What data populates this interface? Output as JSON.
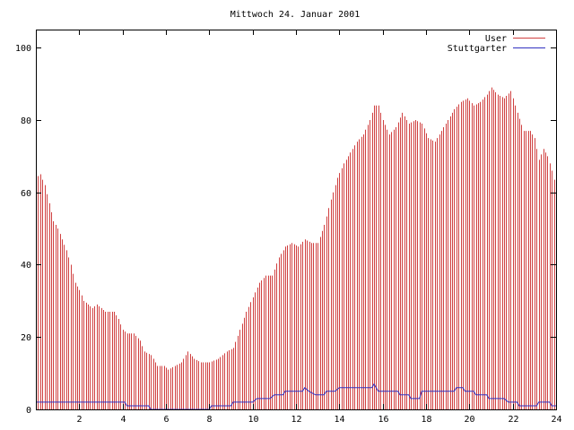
{
  "chart_data": {
    "type": "bar",
    "title": "Mittwoch 24. Januar 2001",
    "xlabel": "",
    "ylabel": "",
    "xlim": [
      0,
      24
    ],
    "ylim": [
      0,
      105
    ],
    "x_ticks": [
      2,
      4,
      6,
      8,
      10,
      12,
      14,
      16,
      18,
      20,
      22,
      24
    ],
    "y_ticks": [
      0,
      20,
      40,
      60,
      80,
      100
    ],
    "grid": false,
    "legend_position": "top-right",
    "bin_hours": 0.1,
    "series": [
      {
        "name": "User",
        "style": "impulses",
        "color": "#d04040",
        "anchors": [
          [
            0.0,
            64
          ],
          [
            0.2,
            65
          ],
          [
            0.4,
            62
          ],
          [
            0.6,
            57
          ],
          [
            0.8,
            52
          ],
          [
            1.0,
            50
          ],
          [
            1.2,
            47
          ],
          [
            1.4,
            44
          ],
          [
            1.6,
            40
          ],
          [
            1.8,
            35
          ],
          [
            2.0,
            33
          ],
          [
            2.2,
            30
          ],
          [
            2.4,
            29
          ],
          [
            2.6,
            28
          ],
          [
            2.8,
            29
          ],
          [
            3.0,
            28
          ],
          [
            3.2,
            27
          ],
          [
            3.4,
            27
          ],
          [
            3.6,
            27
          ],
          [
            3.8,
            25
          ],
          [
            4.0,
            22
          ],
          [
            4.2,
            21
          ],
          [
            4.5,
            21
          ],
          [
            4.8,
            19
          ],
          [
            5.0,
            16
          ],
          [
            5.3,
            15
          ],
          [
            5.6,
            12
          ],
          [
            5.9,
            12
          ],
          [
            6.1,
            11
          ],
          [
            6.4,
            12
          ],
          [
            6.7,
            13
          ],
          [
            7.0,
            16
          ],
          [
            7.3,
            14
          ],
          [
            7.6,
            13
          ],
          [
            8.0,
            13
          ],
          [
            8.4,
            14
          ],
          [
            8.8,
            16
          ],
          [
            9.1,
            17
          ],
          [
            9.4,
            22
          ],
          [
            9.7,
            27
          ],
          [
            10.0,
            31
          ],
          [
            10.3,
            35
          ],
          [
            10.6,
            37
          ],
          [
            10.9,
            37
          ],
          [
            11.2,
            42
          ],
          [
            11.5,
            45
          ],
          [
            11.8,
            46
          ],
          [
            12.1,
            45
          ],
          [
            12.4,
            47
          ],
          [
            12.7,
            46
          ],
          [
            13.0,
            46
          ],
          [
            13.3,
            51
          ],
          [
            13.6,
            58
          ],
          [
            13.9,
            64
          ],
          [
            14.2,
            68
          ],
          [
            14.5,
            71
          ],
          [
            14.8,
            74
          ],
          [
            15.1,
            76
          ],
          [
            15.4,
            80
          ],
          [
            15.6,
            84
          ],
          [
            15.8,
            84
          ],
          [
            16.0,
            80
          ],
          [
            16.3,
            76
          ],
          [
            16.6,
            78
          ],
          [
            16.9,
            82
          ],
          [
            17.2,
            79
          ],
          [
            17.5,
            80
          ],
          [
            17.8,
            79
          ],
          [
            18.1,
            75
          ],
          [
            18.4,
            74
          ],
          [
            18.7,
            77
          ],
          [
            19.0,
            80
          ],
          [
            19.3,
            83
          ],
          [
            19.6,
            85
          ],
          [
            19.9,
            86
          ],
          [
            20.2,
            84
          ],
          [
            20.5,
            85
          ],
          [
            20.8,
            87
          ],
          [
            21.0,
            89
          ],
          [
            21.3,
            87
          ],
          [
            21.6,
            86
          ],
          [
            21.9,
            88
          ],
          [
            22.2,
            82
          ],
          [
            22.5,
            77
          ],
          [
            22.8,
            77
          ],
          [
            23.0,
            75
          ],
          [
            23.2,
            69
          ],
          [
            23.4,
            72
          ],
          [
            23.6,
            70
          ],
          [
            23.8,
            66
          ],
          [
            24.0,
            61
          ]
        ]
      },
      {
        "name": "Stuttgarter",
        "style": "steps",
        "color": "#3030c0",
        "anchors": [
          [
            0.0,
            2
          ],
          [
            4.1,
            2
          ],
          [
            4.2,
            1
          ],
          [
            5.2,
            1
          ],
          [
            5.3,
            0
          ],
          [
            8.0,
            0
          ],
          [
            8.1,
            1
          ],
          [
            9.0,
            1
          ],
          [
            9.1,
            2
          ],
          [
            10.0,
            2
          ],
          [
            10.2,
            3
          ],
          [
            10.8,
            3
          ],
          [
            11.0,
            4
          ],
          [
            11.4,
            4
          ],
          [
            11.5,
            5
          ],
          [
            12.3,
            5
          ],
          [
            12.4,
            6
          ],
          [
            12.6,
            5
          ],
          [
            12.9,
            4
          ],
          [
            13.3,
            4
          ],
          [
            13.4,
            5
          ],
          [
            13.8,
            5
          ],
          [
            14.0,
            6
          ],
          [
            14.8,
            6
          ],
          [
            15.0,
            6
          ],
          [
            15.5,
            6
          ],
          [
            15.6,
            7
          ],
          [
            15.8,
            5
          ],
          [
            16.7,
            5
          ],
          [
            16.8,
            4
          ],
          [
            17.2,
            4
          ],
          [
            17.3,
            3
          ],
          [
            17.7,
            3
          ],
          [
            17.8,
            5
          ],
          [
            19.3,
            5
          ],
          [
            19.4,
            6
          ],
          [
            19.7,
            6
          ],
          [
            19.8,
            5
          ],
          [
            20.2,
            5
          ],
          [
            20.3,
            4
          ],
          [
            20.8,
            4
          ],
          [
            20.9,
            3
          ],
          [
            21.6,
            3
          ],
          [
            21.8,
            2
          ],
          [
            22.2,
            2
          ],
          [
            22.3,
            1
          ],
          [
            23.1,
            1
          ],
          [
            23.2,
            2
          ],
          [
            23.7,
            2
          ],
          [
            23.8,
            1
          ],
          [
            24.0,
            1
          ]
        ]
      }
    ]
  }
}
